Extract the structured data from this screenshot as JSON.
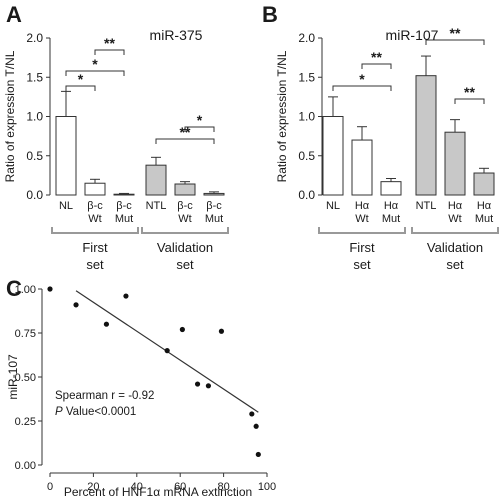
{
  "chart_data": [
    {
      "panel": "A",
      "type": "bar",
      "title": "miR-375",
      "ylabel": "Ratio of expression T/NL",
      "ylim": [
        0,
        2.0
      ],
      "yticks": [
        "0.0",
        "0.5",
        "1.0",
        "1.5",
        "2.0"
      ],
      "categories": [
        "NL",
        "β-c Wt",
        "β-c Mut",
        "NTL",
        "β-c Wt",
        "β-c Mut"
      ],
      "values": [
        1.0,
        0.15,
        0.01,
        0.38,
        0.14,
        0.02
      ],
      "errors": [
        0.32,
        0.05,
        0.01,
        0.1,
        0.03,
        0.02
      ],
      "fills": [
        "#ffffff",
        "#ffffff",
        "#ffffff",
        "#c8c8c8",
        "#c8c8c8",
        "#c8c8c8"
      ],
      "groups": [
        {
          "line1": "First",
          "line2": "set"
        },
        {
          "line1": "Validation",
          "line2": "set"
        }
      ],
      "significance": [
        {
          "label": "*",
          "from": 0,
          "to": 1
        },
        {
          "label": "*",
          "from": 0,
          "to": 2
        },
        {
          "label": "**",
          "from": 1,
          "to": 2
        },
        {
          "label": "**",
          "from": 3,
          "to": 5
        },
        {
          "label": "*",
          "from": 4,
          "to": 5
        }
      ]
    },
    {
      "panel": "B",
      "type": "bar",
      "title": "miR-107",
      "ylabel": "Ratio of expression T/NL",
      "ylim": [
        0,
        2.0
      ],
      "yticks": [
        "0.0",
        "0.5",
        "1.0",
        "1.5",
        "2.0"
      ],
      "categories": [
        "NL",
        "Hα Wt",
        "Hα Mut",
        "NTL",
        "Hα Wt",
        "Hα Mut"
      ],
      "values": [
        1.0,
        0.7,
        0.17,
        1.52,
        0.8,
        0.28
      ],
      "errors": [
        0.25,
        0.17,
        0.04,
        0.25,
        0.16,
        0.06
      ],
      "fills": [
        "#ffffff",
        "#ffffff",
        "#ffffff",
        "#c8c8c8",
        "#c8c8c8",
        "#c8c8c8"
      ],
      "groups": [
        {
          "line1": "First",
          "line2": "set"
        },
        {
          "line1": "Validation",
          "line2": "set"
        }
      ],
      "significance": [
        {
          "label": "*",
          "from": 0,
          "to": 2
        },
        {
          "label": "**",
          "from": 1,
          "to": 2
        },
        {
          "label": "**",
          "from": 3,
          "to": 5
        },
        {
          "label": "**",
          "from": 4,
          "to": 5
        }
      ]
    },
    {
      "panel": "C",
      "type": "scatter",
      "xlabel": "Percent of HNF1α mRNA extinction",
      "ylabel": "miR-107",
      "xlim": [
        0,
        100
      ],
      "ylim": [
        0,
        1.0
      ],
      "xticks": [
        "0",
        "20",
        "40",
        "60",
        "80",
        "100"
      ],
      "yticks": [
        "0.00",
        "0.25",
        "0.50",
        "0.75",
        "1.00"
      ],
      "points": [
        {
          "x": 0,
          "y": 1.0
        },
        {
          "x": 12,
          "y": 0.91
        },
        {
          "x": 26,
          "y": 0.8
        },
        {
          "x": 35,
          "y": 0.96
        },
        {
          "x": 54,
          "y": 0.65
        },
        {
          "x": 61,
          "y": 0.77
        },
        {
          "x": 68,
          "y": 0.46
        },
        {
          "x": 73,
          "y": 0.45
        },
        {
          "x": 79,
          "y": 0.76
        },
        {
          "x": 93,
          "y": 0.29
        },
        {
          "x": 95,
          "y": 0.22
        },
        {
          "x": 96,
          "y": 0.06
        }
      ],
      "trendline": {
        "x1": 12,
        "y1": 0.99,
        "x2": 96,
        "y2": 0.3
      },
      "stat_line1": "Spearman r = -0.92",
      "stat_p": "P",
      "stat_line2_rest": " Value<0.0001"
    }
  ],
  "panel_labels": {
    "a": "A",
    "b": "B",
    "c": "C"
  }
}
